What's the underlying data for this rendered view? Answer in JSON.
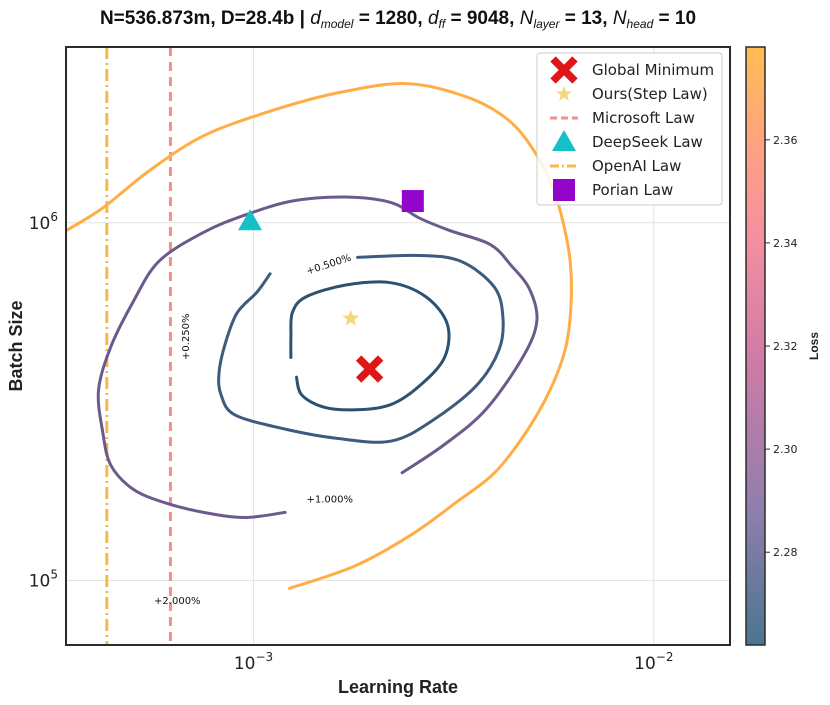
{
  "chart_data": {
    "type": "contour",
    "title": {
      "prefix": "N=536.873m, D=28.4b | ",
      "dmodel_value": "1280",
      "dff_value": "9048",
      "nlayer_value": "13",
      "nhead_value": "10"
    },
    "xlabel": "Learning Rate",
    "ylabel": "Batch Size",
    "x_scale": "log",
    "y_scale": "log",
    "xlim": [
      0.00034,
      0.0155
    ],
    "ylim": [
      66000,
      3100000
    ],
    "x_ticks": [
      {
        "base": "10",
        "exp": "−3",
        "value": 0.001
      },
      {
        "base": "10",
        "exp": "−2",
        "value": 0.01
      }
    ],
    "y_ticks": [
      {
        "base": "10",
        "exp": "6",
        "value": 1000000
      },
      {
        "base": "10",
        "exp": "5",
        "value": 100000
      }
    ],
    "grid": true,
    "colorbar": {
      "label": "Loss",
      "range": [
        2.262,
        2.378
      ],
      "ticks": [
        "2.28",
        "2.30",
        "2.32",
        "2.34",
        "2.36"
      ],
      "tick_values": [
        2.28,
        2.3,
        2.32,
        2.34,
        2.36
      ],
      "colors": [
        "#4a7590",
        "#8e7eae",
        "#d07ba6",
        "#f48fa0",
        "#ffa47e",
        "#ffbd52"
      ]
    },
    "contours": [
      {
        "label": "+0.250%",
        "color": "#2c5272",
        "label_x": 0.00069,
        "label_y": 480000,
        "points": [
          [
            0.00128,
            370000
          ],
          [
            0.00132,
            330000
          ],
          [
            0.0015,
            305000
          ],
          [
            0.0018,
            300000
          ],
          [
            0.0022,
            310000
          ],
          [
            0.0026,
            350000
          ],
          [
            0.003,
            420000
          ],
          [
            0.00305,
            520000
          ],
          [
            0.0027,
            620000
          ],
          [
            0.0022,
            680000
          ],
          [
            0.0017,
            670000
          ],
          [
            0.00135,
            620000
          ],
          [
            0.00125,
            560000
          ],
          [
            0.00124,
            480000
          ],
          [
            0.00124,
            420000
          ]
        ]
      },
      {
        "label": "+0.500%",
        "color": "#3e5a7e",
        "label_x": 0.00155,
        "label_y": 750000,
        "points": [
          [
            0.00182,
            800000
          ],
          [
            0.0026,
            810000
          ],
          [
            0.0033,
            780000
          ],
          [
            0.004,
            660000
          ],
          [
            0.0042,
            540000
          ],
          [
            0.0041,
            440000
          ],
          [
            0.0036,
            350000
          ],
          [
            0.0028,
            280000
          ],
          [
            0.0022,
            245000
          ],
          [
            0.0016,
            250000
          ],
          [
            0.0012,
            265000
          ],
          [
            0.0009,
            290000
          ],
          [
            0.00083,
            330000
          ],
          [
            0.00082,
            380000
          ],
          [
            0.00085,
            460000
          ],
          [
            0.00091,
            560000
          ],
          [
            0.00102,
            640000
          ],
          [
            0.0011,
            720000
          ]
        ]
      },
      {
        "label": "+1.000%",
        "color": "#6c5a8e",
        "label_x": 0.00155,
        "label_y": 165000,
        "points": [
          [
            0.00235,
            200000
          ],
          [
            0.003,
            240000
          ],
          [
            0.0038,
            300000
          ],
          [
            0.0047,
            420000
          ],
          [
            0.0051,
            530000
          ],
          [
            0.0049,
            650000
          ],
          [
            0.0044,
            760000
          ],
          [
            0.0039,
            870000
          ],
          [
            0.0031,
            950000
          ],
          [
            0.0026,
            1030000
          ],
          [
            0.0022,
            1140000
          ],
          [
            0.0017,
            1180000
          ],
          [
            0.00125,
            1150000
          ],
          [
            0.00095,
            1050000
          ],
          [
            0.00075,
            940000
          ],
          [
            0.00058,
            780000
          ],
          [
            0.0005,
            600000
          ],
          [
            0.00044,
            450000
          ],
          [
            0.00041,
            340000
          ],
          [
            0.00042,
            260000
          ],
          [
            0.00044,
            210000
          ],
          [
            0.0005,
            180000
          ],
          [
            0.0006,
            165000
          ],
          [
            0.00075,
            155000
          ],
          [
            0.00095,
            150000
          ],
          [
            0.0012,
            155000
          ]
        ]
      },
      {
        "label": "+2.000%",
        "color": "#ffae45",
        "label_x": 0.000645,
        "label_y": 86000,
        "points": [
          [
            0.00123,
            95000
          ],
          [
            0.0018,
            110000
          ],
          [
            0.0025,
            135000
          ],
          [
            0.0032,
            165000
          ],
          [
            0.004,
            200000
          ],
          [
            0.0048,
            260000
          ],
          [
            0.0055,
            340000
          ],
          [
            0.006,
            440000
          ],
          [
            0.0062,
            570000
          ],
          [
            0.0062,
            750000
          ],
          [
            0.006,
            950000
          ],
          [
            0.0056,
            1250000
          ],
          [
            0.005,
            1600000
          ],
          [
            0.0043,
            1950000
          ],
          [
            0.0034,
            2250000
          ],
          [
            0.0024,
            2450000
          ],
          [
            0.0016,
            2300000
          ],
          [
            0.0011,
            2050000
          ],
          [
            0.00075,
            1750000
          ],
          [
            0.00055,
            1400000
          ],
          [
            0.00042,
            1100000
          ],
          [
            0.00034,
            950000
          ]
        ]
      }
    ],
    "markers": [
      {
        "name": "Global Minimum",
        "shape": "x",
        "color": "#e01515",
        "x": 0.00195,
        "y": 390000
      },
      {
        "name": "Ours(Step Law)",
        "shape": "star",
        "color": "#f5d878",
        "x": 0.00175,
        "y": 540000
      },
      {
        "name": "DeepSeek Law",
        "shape": "triangle",
        "color": "#17bfc8",
        "x": 0.00098,
        "y": 1010000
      },
      {
        "name": "Porian Law",
        "shape": "square",
        "color": "#9306c9",
        "x": 0.0025,
        "y": 1150000
      }
    ],
    "vlines": [
      {
        "name": "Microsoft Law",
        "style": "dashed",
        "color": "#f58f86",
        "x": 0.00062
      },
      {
        "name": "OpenAI Law",
        "style": "dashdot",
        "color": "#f7b84a",
        "x": 0.00043
      }
    ],
    "legend": {
      "position": "top-right",
      "entries": [
        {
          "label": "Global Minimum",
          "shape": "x",
          "color": "#e01515"
        },
        {
          "label": "Ours(Step Law)",
          "shape": "star",
          "color": "#f5d878"
        },
        {
          "label": "Microsoft Law",
          "shape": "dashed",
          "color": "#f58f86"
        },
        {
          "label": "DeepSeek Law",
          "shape": "triangle",
          "color": "#17bfc8"
        },
        {
          "label": "OpenAI Law",
          "shape": "dashdot",
          "color": "#f7b84a"
        },
        {
          "label": "Porian Law",
          "shape": "square",
          "color": "#9306c9"
        }
      ]
    }
  }
}
